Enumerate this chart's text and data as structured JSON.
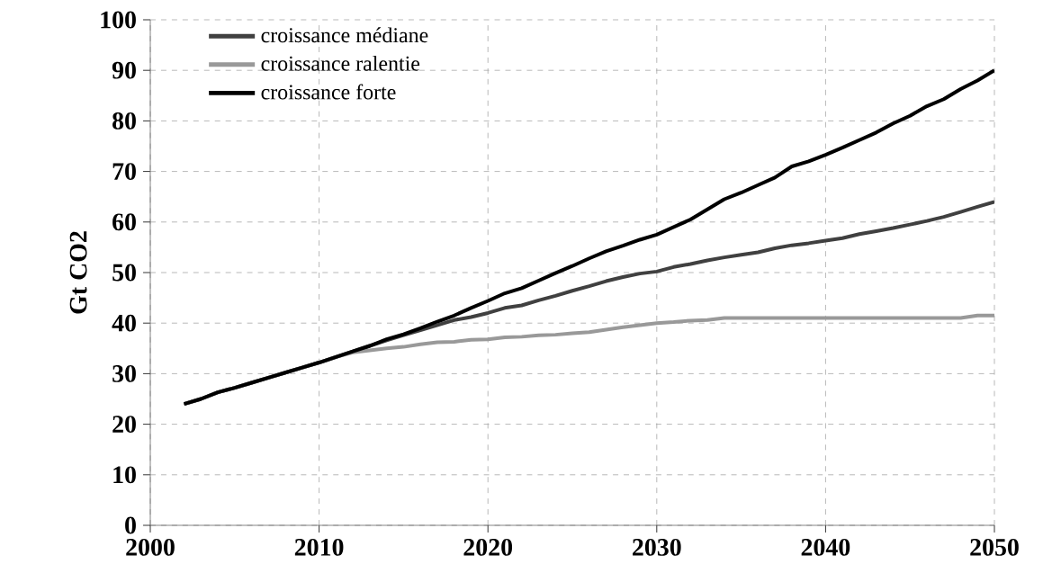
{
  "chart_data": {
    "type": "line",
    "ylabel": "Gt CO2",
    "x": [
      2002,
      2003,
      2004,
      2005,
      2006,
      2007,
      2008,
      2009,
      2010,
      2011,
      2012,
      2013,
      2014,
      2015,
      2016,
      2017,
      2018,
      2019,
      2020,
      2021,
      2022,
      2023,
      2024,
      2025,
      2026,
      2027,
      2028,
      2029,
      2030,
      2031,
      2032,
      2033,
      2034,
      2035,
      2036,
      2037,
      2038,
      2039,
      2040,
      2041,
      2042,
      2043,
      2044,
      2045,
      2046,
      2047,
      2048,
      2049,
      2050
    ],
    "series": [
      {
        "name": "croissance médiane",
        "color": "#404040",
        "values": [
          24,
          25,
          26.3,
          27.2,
          28.2,
          29.2,
          30.2,
          31.2,
          32.2,
          33.3,
          34.4,
          35.5,
          36.6,
          37.6,
          38.6,
          39.6,
          40.6,
          41.2,
          42,
          43,
          43.5,
          44.5,
          45.4,
          46.4,
          47.3,
          48.3,
          49.1,
          49.8,
          50.2,
          51.1,
          51.7,
          52.4,
          53,
          53.5,
          54,
          54.8,
          55.4,
          55.8,
          56.3,
          56.8,
          57.6,
          58.2,
          58.8,
          59.5,
          60.2,
          61,
          62,
          63,
          64
        ]
      },
      {
        "name": "croissance ralentie",
        "color": "#999999",
        "values": [
          24,
          25,
          26.3,
          27.2,
          28.2,
          29.2,
          30.2,
          31.2,
          32.2,
          33.3,
          34.2,
          34.6,
          35,
          35.3,
          35.8,
          36.2,
          36.3,
          36.7,
          36.8,
          37.2,
          37.3,
          37.6,
          37.7,
          38,
          38.2,
          38.7,
          39.2,
          39.6,
          40,
          40.2,
          40.5,
          40.6,
          41,
          41,
          41,
          41,
          41,
          41,
          41,
          41,
          41,
          41,
          41,
          41,
          41,
          41,
          41,
          41.5,
          41.5
        ]
      },
      {
        "name": "croissance forte",
        "color": "#000000",
        "values": [
          24,
          25,
          26.3,
          27.2,
          28.2,
          29.2,
          30.2,
          31.2,
          32.2,
          33.3,
          34.4,
          35.5,
          36.8,
          37.8,
          39,
          40.3,
          41.5,
          43,
          44.4,
          45.9,
          46.9,
          48.4,
          49.9,
          51.3,
          52.8,
          54.2,
          55.3,
          56.5,
          57.5,
          59,
          60.5,
          62.5,
          64.5,
          65.8,
          67.3,
          68.8,
          71,
          72,
          73.3,
          74.7,
          76.2,
          77.7,
          79.5,
          81,
          82.9,
          84.3,
          86.3,
          88,
          90
        ]
      }
    ],
    "xlim": [
      2000,
      2050
    ],
    "ylim": [
      0,
      100
    ],
    "xticks": [
      2000,
      2010,
      2020,
      2030,
      2040,
      2050
    ],
    "yticks": [
      0,
      10,
      20,
      30,
      40,
      50,
      60,
      70,
      80,
      90,
      100
    ],
    "grid": true,
    "legend": "top left",
    "marker": "none",
    "line_style": "solid"
  }
}
